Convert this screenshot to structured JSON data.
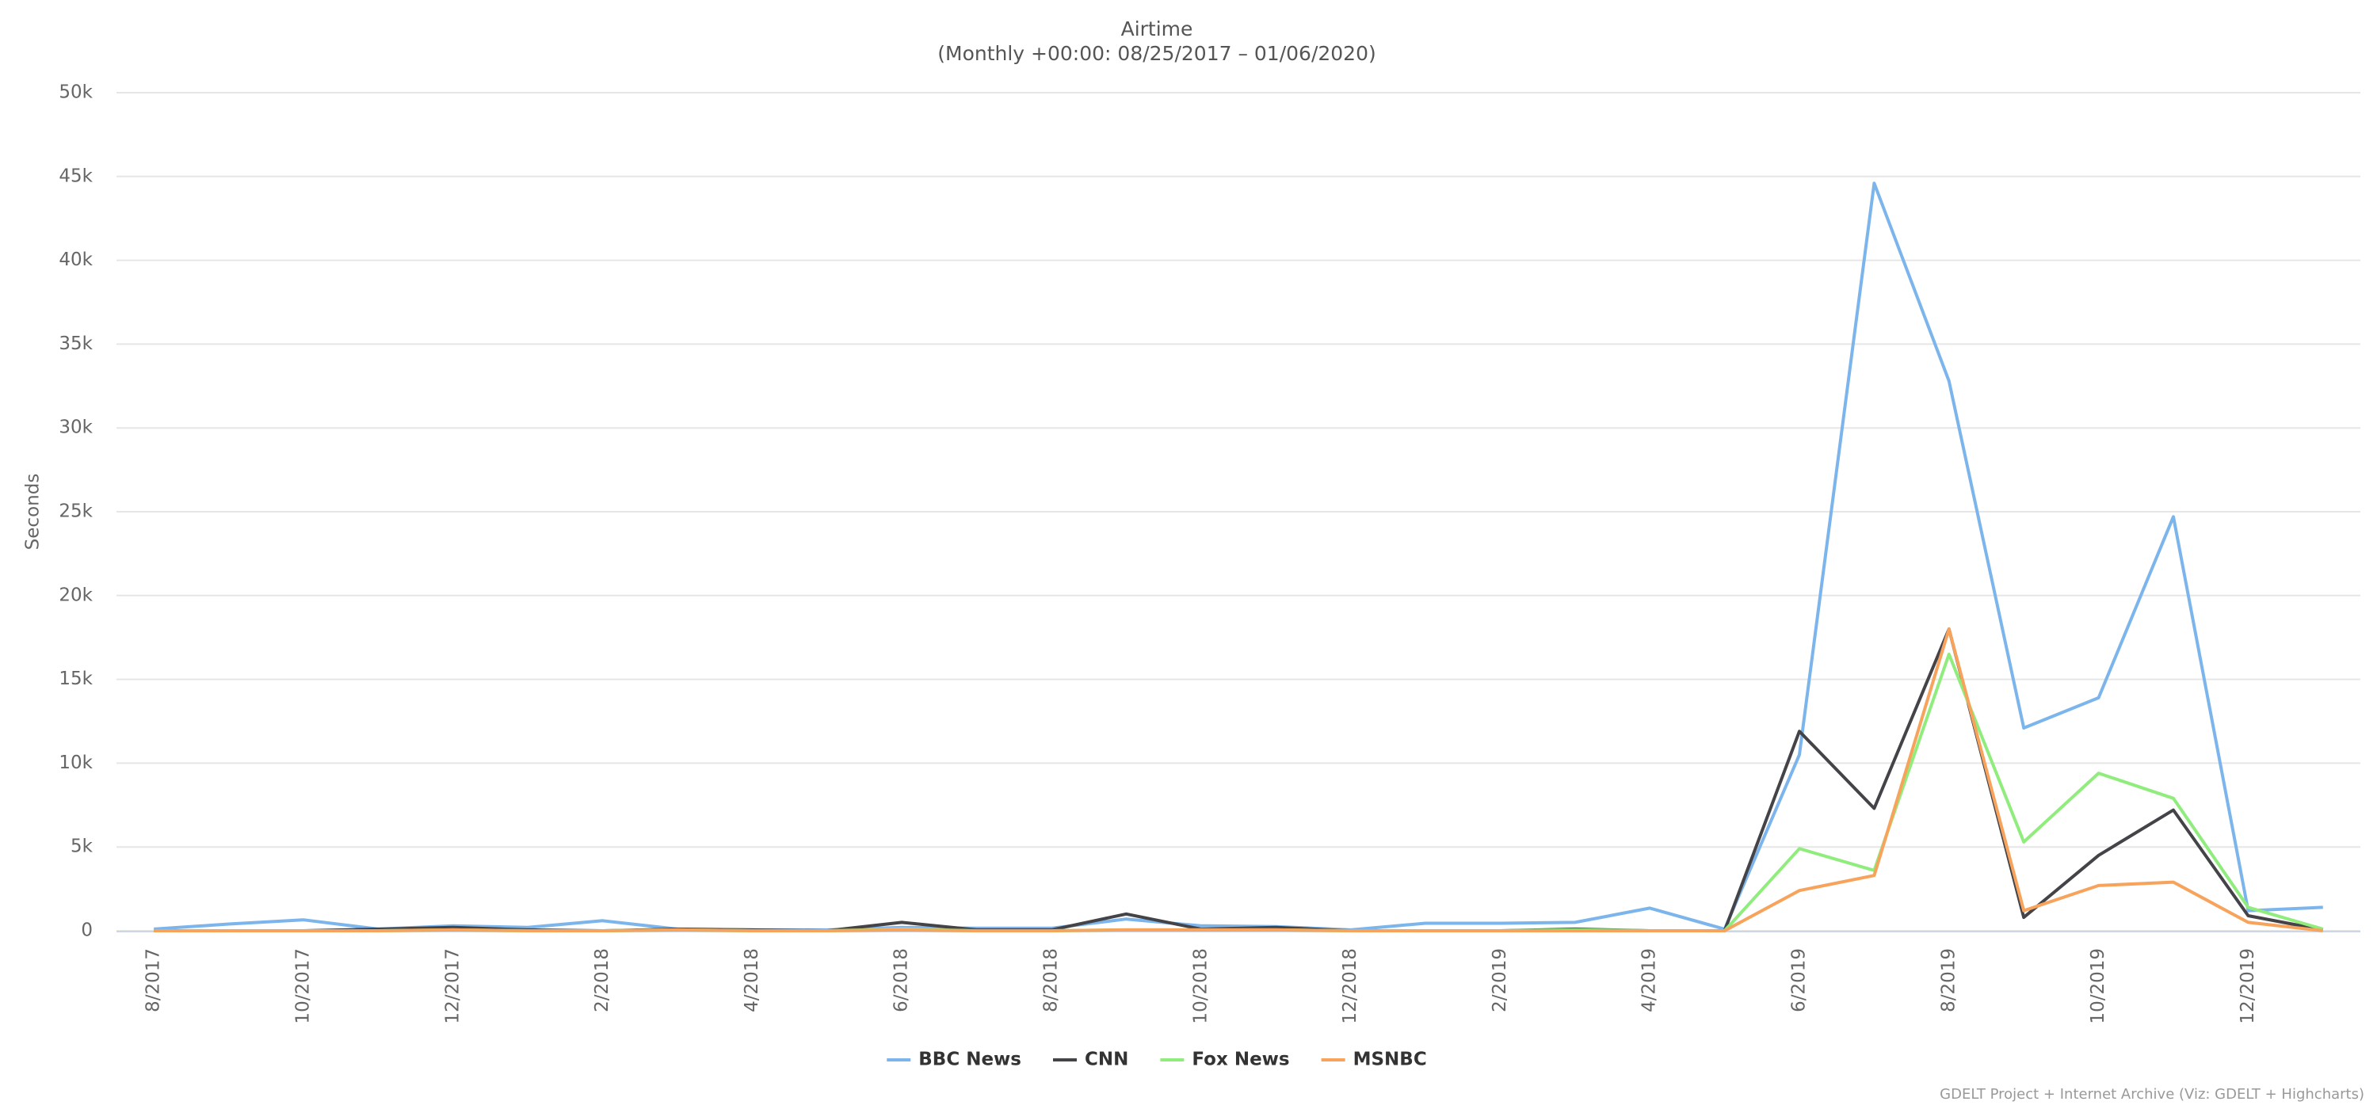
{
  "chart_data": {
    "type": "line",
    "title": "Airtime",
    "subtitle": "(Monthly +00:00: 08/25/2017 – 01/06/2020)",
    "y_label": "Seconds",
    "credits": "GDELT Project + Internet Archive (Viz: GDELT + Highcharts)",
    "categories": [
      "8/2017",
      null,
      "10/2017",
      null,
      "12/2017",
      null,
      "2/2018",
      null,
      "4/2018",
      null,
      "6/2018",
      null,
      "8/2018",
      null,
      "10/2018",
      null,
      "12/2018",
      null,
      "2/2019",
      null,
      "4/2019",
      null,
      "6/2019",
      null,
      "8/2019",
      null,
      "10/2019",
      null,
      "12/2019",
      null
    ],
    "ylim": [
      0,
      50000
    ],
    "yticks": [
      0,
      {
        "value": 5000,
        "label": "5k"
      },
      {
        "value": 10000,
        "label": "10k"
      },
      {
        "value": 15000,
        "label": "15k"
      },
      {
        "value": 20000,
        "label": "20k"
      },
      {
        "value": 25000,
        "label": "25k"
      },
      {
        "value": 30000,
        "label": "30k"
      },
      {
        "value": 35000,
        "label": "35k"
      },
      {
        "value": 40000,
        "label": "40k"
      },
      {
        "value": 45000,
        "label": "45k"
      },
      {
        "value": 50000,
        "label": "50k"
      }
    ],
    "grid": true,
    "legend": "bottom",
    "series": [
      {
        "name": "BBC News",
        "color": "#7cb5ec",
        "values": [
          100,
          400,
          650,
          100,
          300,
          200,
          600,
          100,
          50,
          50,
          200,
          150,
          150,
          700,
          300,
          250,
          50,
          450,
          450,
          500,
          1350,
          100,
          10500,
          44600,
          32800,
          12100,
          13900,
          24700,
          1200,
          1400
        ]
      },
      {
        "name": "CNN",
        "color": "#434348",
        "values": [
          0,
          0,
          0,
          100,
          200,
          50,
          0,
          100,
          50,
          0,
          500,
          50,
          50,
          1000,
          100,
          200,
          0,
          0,
          0,
          100,
          0,
          0,
          11900,
          7300,
          18000,
          800,
          4500,
          7200,
          900,
          50
        ]
      },
      {
        "name": "Fox News",
        "color": "#90ed7d",
        "values": [
          0,
          0,
          0,
          0,
          50,
          0,
          0,
          50,
          0,
          0,
          100,
          0,
          0,
          50,
          50,
          50,
          0,
          0,
          0,
          50,
          0,
          0,
          4900,
          3600,
          16500,
          5300,
          9400,
          7900,
          1400,
          100
        ]
      },
      {
        "name": "MSNBC",
        "color": "#f7a35c",
        "values": [
          0,
          0,
          0,
          0,
          50,
          0,
          0,
          50,
          0,
          0,
          50,
          0,
          0,
          50,
          50,
          50,
          0,
          0,
          0,
          0,
          0,
          0,
          2400,
          3300,
          18000,
          1200,
          2700,
          2900,
          500,
          0
        ]
      }
    ]
  }
}
